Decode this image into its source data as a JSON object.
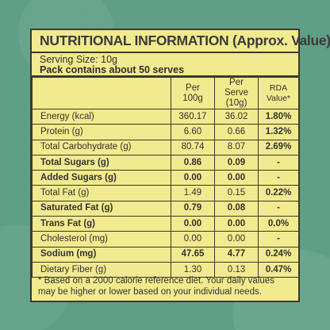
{
  "title": "NUTRITIONAL INFORMATION (Approx. Value)",
  "serving_size": "Serving Size: 10g",
  "pack_serves": "Pack contains about 50 serves",
  "headers": {
    "col1": "",
    "per100_line1": "Per",
    "per100_line2": "100g",
    "perserve_line1": "Per Serve",
    "perserve_line2": "(10g)",
    "rda": "RDA Value*"
  },
  "rows": [
    {
      "label": "Energy (kcal)",
      "per100": "360.17",
      "perserve": "36.02",
      "rda": "1.80%",
      "bold": false
    },
    {
      "label": "Protein (g)",
      "per100": "6.60",
      "perserve": "0.66",
      "rda": "1.32%",
      "bold": false
    },
    {
      "label": "Total Carbohydrate (g)",
      "per100": "80.74",
      "perserve": "8.07",
      "rda": "2.69%",
      "bold": false
    },
    {
      "label": "Total Sugars (g)",
      "per100": "0.86",
      "perserve": "0.09",
      "rda": "-",
      "bold": true
    },
    {
      "label": "Added Sugars (g)",
      "per100": "0.00",
      "perserve": "0.00",
      "rda": "-",
      "bold": true
    },
    {
      "label": "Total Fat (g)",
      "per100": "1.49",
      "perserve": "0.15",
      "rda": "0.22%",
      "bold": false
    },
    {
      "label": "Saturated Fat (g)",
      "per100": "0.79",
      "perserve": "0.08",
      "rda": "-",
      "bold": true
    },
    {
      "label": "Trans Fat (g)",
      "per100": "0.00",
      "perserve": "0.00",
      "rda": "0.0%",
      "bold": true
    },
    {
      "label": "Cholesterol (mg)",
      "per100": "0.00",
      "perserve": "0.00",
      "rda": "-",
      "bold": false
    },
    {
      "label": "Sodium (mg)",
      "per100": "47.65",
      "perserve": "4.77",
      "rda": "0.24%",
      "bold": true
    },
    {
      "label": "Dietary Fiber (g)",
      "per100": "1.30",
      "perserve": "0.13",
      "rda": "0.47%",
      "bold": false
    }
  ],
  "footnote_line1": "* Based on a 2000 calorie reference diet. Your daily values",
  "footnote_line2": "may be higher or lower based on your individual needs.",
  "colors": {
    "background": "#5f9f86",
    "panel": "#f2ea8e",
    "border": "#3a3a2a"
  }
}
